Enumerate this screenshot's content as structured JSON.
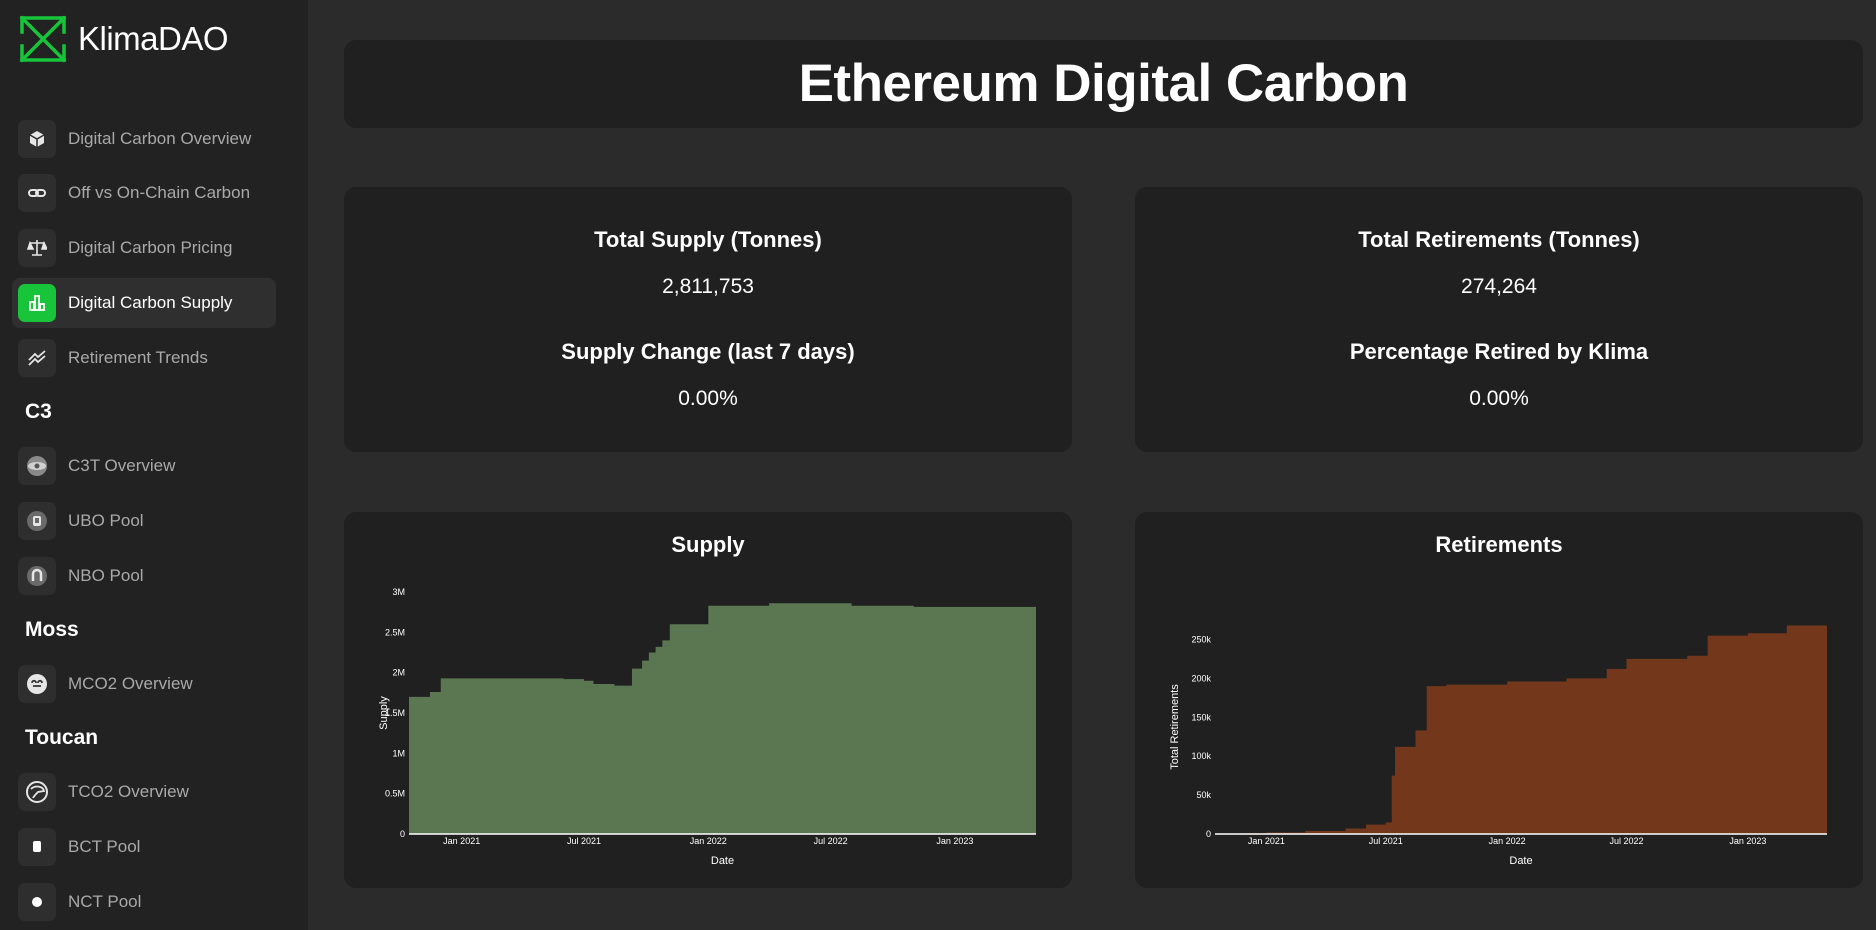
{
  "brand": {
    "name": "KlimaDAO",
    "logo_icon": "klima-logo-icon",
    "accent": "#17c43a"
  },
  "sidebar": {
    "items": [
      {
        "label": "Digital Carbon Overview",
        "icon": "cube-icon",
        "active": false
      },
      {
        "label": "Off vs On-Chain Carbon",
        "icon": "link-icon",
        "active": false
      },
      {
        "label": "Digital Carbon Pricing",
        "icon": "scale-icon",
        "active": false
      },
      {
        "label": "Digital Carbon Supply",
        "icon": "bar-chart-icon",
        "active": true
      },
      {
        "label": "Retirement Trends",
        "icon": "trend-icon",
        "active": false
      }
    ],
    "sections": [
      {
        "heading": "C3",
        "items": [
          {
            "label": "C3T Overview",
            "icon": "c3t-token-icon"
          },
          {
            "label": "UBO Pool",
            "icon": "ubo-token-icon"
          },
          {
            "label": "NBO Pool",
            "icon": "nbo-token-icon"
          }
        ]
      },
      {
        "heading": "Moss",
        "items": [
          {
            "label": "MCO2 Overview",
            "icon": "mco2-token-icon"
          }
        ]
      },
      {
        "heading": "Toucan",
        "items": [
          {
            "label": "TCO2 Overview",
            "icon": "tco2-token-icon"
          },
          {
            "label": "BCT Pool",
            "icon": "bct-token-icon"
          },
          {
            "label": "NCT Pool",
            "icon": "nct-token-icon"
          }
        ]
      }
    ]
  },
  "main": {
    "title": "Ethereum Digital Carbon",
    "stats_left": {
      "supply_label": "Total Supply (Tonnes)",
      "supply_value": "2,811,753",
      "change_label": "Supply Change (last 7 days)",
      "change_value": "0.00%"
    },
    "stats_right": {
      "retire_label": "Total Retirements (Tonnes)",
      "retire_value": "274,264",
      "pct_label": "Percentage Retired by Klima",
      "pct_value": "0.00%"
    }
  },
  "chart_data": [
    {
      "type": "area",
      "title": "Supply",
      "xlabel": "Date",
      "ylabel": "Supply",
      "color": "#5a7752",
      "x_ticks": [
        "Jan 2021",
        "Jul 2021",
        "Jan 2022",
        "Jul 2022",
        "Jan 2023"
      ],
      "y_ticks": [
        "0",
        "0.5M",
        "1M",
        "1.5M",
        "2M",
        "2.5M",
        "3M"
      ],
      "xlim": [
        "2020-10-15",
        "2023-05-01"
      ],
      "ylim": [
        0,
        3000000
      ],
      "x": [
        "2020-10-15",
        "2020-11-15",
        "2020-12-01",
        "2021-06-01",
        "2021-07-01",
        "2021-07-15",
        "2021-08-15",
        "2021-09-10",
        "2021-09-25",
        "2021-10-05",
        "2021-10-15",
        "2021-10-25",
        "2021-11-05",
        "2021-12-01",
        "2022-01-01",
        "2022-03-01",
        "2022-04-01",
        "2022-08-01",
        "2022-11-01",
        "2023-05-01"
      ],
      "y": [
        1700000,
        1760000,
        1930000,
        1920000,
        1900000,
        1860000,
        1840000,
        2050000,
        2150000,
        2250000,
        2320000,
        2400000,
        2600000,
        2600000,
        2830000,
        2830000,
        2860000,
        2830000,
        2815000,
        2810000
      ]
    },
    {
      "type": "area",
      "title": "Retirements",
      "xlabel": "Date",
      "ylabel": "Total Retirements",
      "color": "#73381c",
      "x_ticks": [
        "Jan 2021",
        "Jul 2021",
        "Jan 2022",
        "Jul 2022",
        "Jan 2023"
      ],
      "y_ticks": [
        "0",
        "50k",
        "100k",
        "150k",
        "200k",
        "250k"
      ],
      "xlim": [
        "2020-10-15",
        "2023-05-01"
      ],
      "ylim": [
        0,
        275000
      ],
      "x": [
        "2020-10-15",
        "2020-12-01",
        "2021-01-01",
        "2021-03-01",
        "2021-05-01",
        "2021-06-01",
        "2021-07-01",
        "2021-07-10",
        "2021-07-15",
        "2021-08-01",
        "2021-08-15",
        "2021-09-01",
        "2021-09-10",
        "2021-10-01",
        "2022-01-01",
        "2022-04-01",
        "2022-06-01",
        "2022-07-01",
        "2022-10-01",
        "2022-11-01",
        "2023-01-01",
        "2023-03-01",
        "2023-05-01"
      ],
      "y": [
        0,
        1000,
        2000,
        4000,
        7000,
        12000,
        15000,
        75000,
        112000,
        112000,
        133000,
        190000,
        190000,
        192000,
        196000,
        200000,
        212000,
        225000,
        229000,
        255000,
        258000,
        268000,
        274000
      ]
    }
  ]
}
